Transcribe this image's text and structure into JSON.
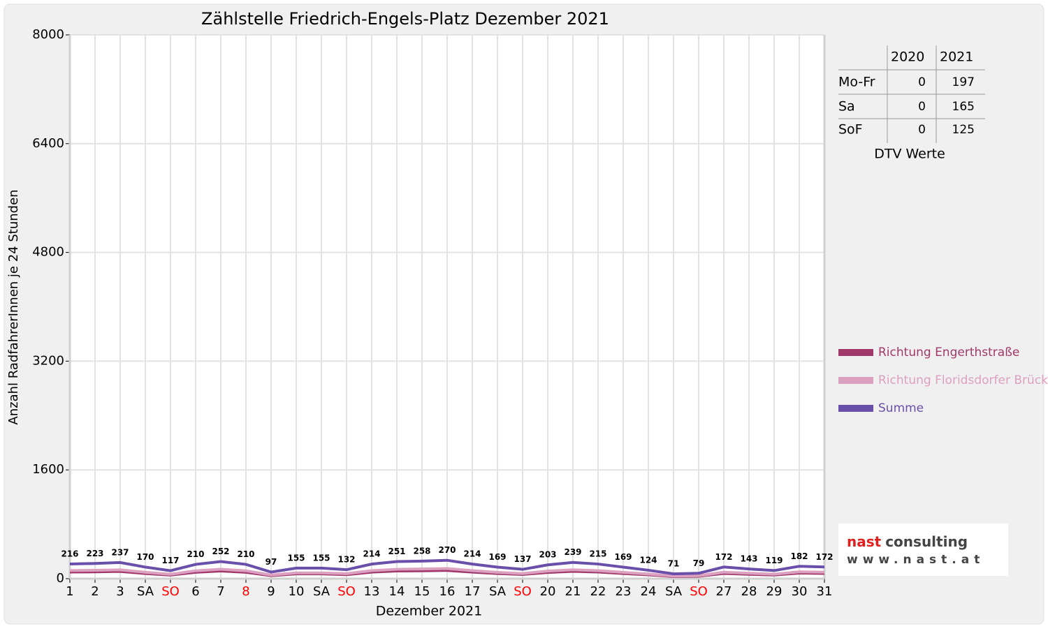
{
  "chart_data": {
    "type": "line",
    "title": "Zählstelle Friedrich-Engels-Platz Dezember 2021",
    "x_label": "Dezember 2021",
    "y_label": "Anzahl RadfahrerInnen je 24 Stunden",
    "categories": [
      "1",
      "2",
      "3",
      "SA",
      "SO",
      "6",
      "7",
      "8",
      "9",
      "10",
      "SA",
      "SO",
      "13",
      "14",
      "15",
      "16",
      "17",
      "SA",
      "SO",
      "20",
      "21",
      "22",
      "23",
      "24",
      "SA",
      "SO",
      "27",
      "28",
      "29",
      "30",
      "31"
    ],
    "category_colors": [
      "#000000",
      "#000000",
      "#000000",
      "#000000",
      "#ff0000",
      "#000000",
      "#000000",
      "#ff0000",
      "#000000",
      "#000000",
      "#000000",
      "#ff0000",
      "#000000",
      "#000000",
      "#000000",
      "#000000",
      "#000000",
      "#000000",
      "#ff0000",
      "#000000",
      "#000000",
      "#000000",
      "#000000",
      "#000000",
      "#000000",
      "#ff0000",
      "#000000",
      "#000000",
      "#000000",
      "#000000",
      "#000000"
    ],
    "ylim": [
      0,
      8000
    ],
    "yticks": [
      0,
      1600,
      3200,
      4800,
      6400,
      8000
    ],
    "grid": true,
    "series": [
      {
        "name": "Richtung Engerthstraße",
        "color": "#a0386a",
        "values": [
          97,
          100,
          107,
          76,
          53,
          94,
          113,
          94,
          44,
          70,
          70,
          59,
          96,
          113,
          116,
          121,
          96,
          76,
          62,
          91,
          108,
          97,
          76,
          56,
          32,
          36,
          77,
          64,
          54,
          82,
          77
        ]
      },
      {
        "name": "Richtung Floridsdorfer Brücke",
        "color": "#dca0c0",
        "values": [
          119,
          123,
          130,
          94,
          64,
          116,
          139,
          116,
          53,
          85,
          85,
          73,
          118,
          138,
          142,
          149,
          118,
          93,
          75,
          112,
          131,
          118,
          93,
          68,
          39,
          43,
          95,
          79,
          65,
          100,
          95
        ]
      },
      {
        "name": "Summe",
        "color": "#6a4faa",
        "values": [
          216,
          223,
          237,
          170,
          117,
          210,
          252,
          210,
          97,
          155,
          155,
          132,
          214,
          251,
          258,
          270,
          214,
          169,
          137,
          203,
          239,
          215,
          169,
          124,
          71,
          79,
          172,
          143,
          119,
          182,
          172
        ],
        "data_labels": true
      }
    ],
    "table": {
      "columns": [
        "2020",
        "2021"
      ],
      "rows": [
        {
          "label": "Mo-Fr",
          "values": [
            0,
            197
          ]
        },
        {
          "label": "Sa",
          "values": [
            0,
            165
          ]
        },
        {
          "label": "SoF",
          "values": [
            0,
            125
          ]
        }
      ],
      "caption": "DTV Werte"
    },
    "logo": {
      "brand": "nast",
      "suffix": "consulting",
      "url": "www.nast.at"
    }
  }
}
